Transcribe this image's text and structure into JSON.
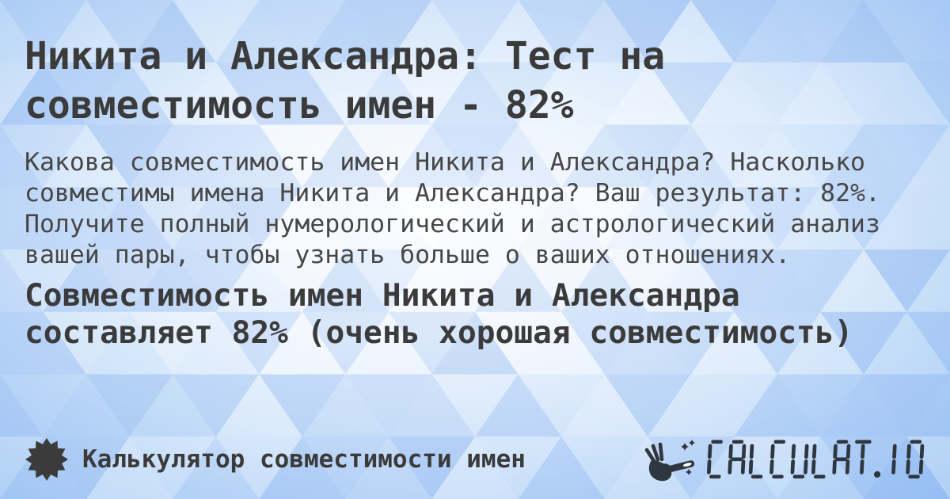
{
  "header": {
    "title": "Никита и Александра: Тест на совместимость имен - 82%"
  },
  "main": {
    "description": "Какова совместимость имен Никита и Александра? Насколько совместимы имена Никита и Александра? Ваш результат: 82%. Получите полный нумерологический и астрологический анализ вашей пары, чтобы узнать больше о ваших отношениях.",
    "result": "Совместимость имен Никита и Александра составляет 82% (очень хорошая совместимость)",
    "percent": "82%"
  },
  "footer": {
    "label": "Калькулятор совместимости имен",
    "logo_text": "CALCULAT.IO"
  },
  "icons": {
    "badge": "starburst-icon",
    "logo_mark": "magic-wand-hand-icon"
  },
  "colors": {
    "background_blue": "#9cc4f2",
    "triangle_blue": "#7daae6",
    "triangle_white": "#ffffff",
    "text_dark": "#3b3b3b",
    "body_text": "#474747",
    "logo_dark": "#2e3640"
  }
}
